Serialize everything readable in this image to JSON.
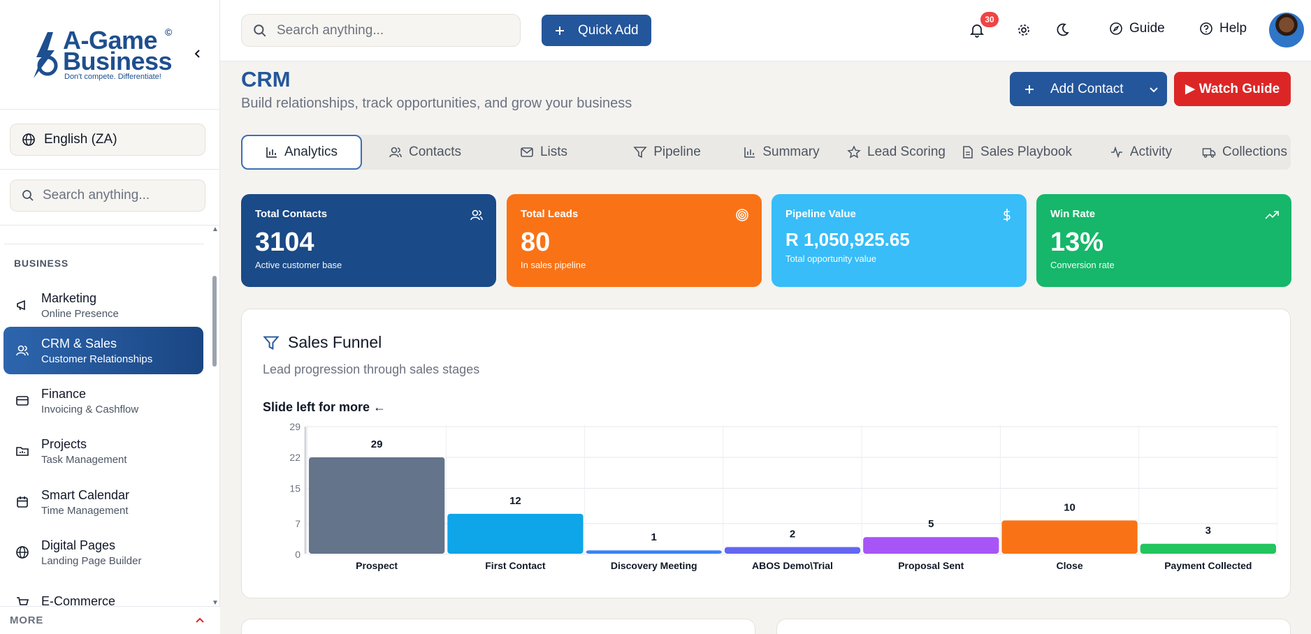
{
  "brand": {
    "line1": "A-Game",
    "line2": "Business",
    "copyright": "©",
    "tagline": "Don't compete. Differentiate!"
  },
  "sidebar": {
    "language": "English (ZA)",
    "search_placeholder": "Search anything...",
    "section_label": "BUSINESS",
    "items": [
      {
        "title": "Marketing",
        "subtitle": "Online Presence",
        "icon": "megaphone-icon"
      },
      {
        "title": "CRM & Sales",
        "subtitle": "Customer Relationships",
        "icon": "users-icon",
        "active": true
      },
      {
        "title": "Finance",
        "subtitle": "Invoicing & Cashflow",
        "icon": "credit-card-icon"
      },
      {
        "title": "Projects",
        "subtitle": "Task Management",
        "icon": "folder-chart-icon"
      },
      {
        "title": "Smart Calendar",
        "subtitle": "Time Management",
        "icon": "calendar-icon"
      },
      {
        "title": "Digital Pages",
        "subtitle": "Landing Page Builder",
        "icon": "globe-icon"
      },
      {
        "title": "E-Commerce",
        "subtitle": "",
        "icon": "cart-icon"
      }
    ],
    "more_label": "MORE"
  },
  "topbar": {
    "search_placeholder": "Search anything...",
    "quick_add": "Quick Add",
    "notification_count": "30",
    "guide": "Guide",
    "help": "Help"
  },
  "page": {
    "title": "CRM",
    "subtitle": "Build relationships, track opportunities, and grow your business",
    "add_contact": "Add Contact",
    "watch_guide": "▶ Watch Guide"
  },
  "tabs": [
    {
      "label": "Analytics",
      "icon": "bar-chart-icon"
    },
    {
      "label": "Contacts",
      "icon": "users-icon"
    },
    {
      "label": "Lists",
      "icon": "mail-icon"
    },
    {
      "label": "Pipeline",
      "icon": "filter-icon"
    },
    {
      "label": "Summary",
      "icon": "bar-chart-icon"
    },
    {
      "label": "Lead Scoring",
      "icon": "star-icon"
    },
    {
      "label": "Sales Playbook",
      "icon": "document-icon"
    },
    {
      "label": "Activity",
      "icon": "activity-icon"
    },
    {
      "label": "Collections",
      "icon": "truck-icon"
    }
  ],
  "stats": [
    {
      "label": "Total Contacts",
      "value": "3104",
      "sub": "Active customer base",
      "color": "#1a4a87",
      "icon": "users-icon"
    },
    {
      "label": "Total Leads",
      "value": "80",
      "sub": "In sales pipeline",
      "color": "#f97316",
      "icon": "target-icon"
    },
    {
      "label": "Pipeline Value",
      "value": "R 1,050,925.65",
      "sub": "Total opportunity value",
      "color": "#38bdf8",
      "icon": "dollar-icon"
    },
    {
      "label": "Win Rate",
      "value": "13%",
      "sub": "Conversion rate",
      "color": "#16b76a",
      "icon": "trending-up-icon"
    }
  ],
  "funnel": {
    "title": "Sales Funnel",
    "subtitle": "Lead progression through sales stages",
    "slide_hint": "Slide left for more ←"
  },
  "chart_data": {
    "type": "bar",
    "categories": [
      "Prospect",
      "First Contact",
      "Discovery Meeting",
      "ABOS Demo\\Trial",
      "Proposal Sent",
      "Close",
      "Payment Collected"
    ],
    "values": [
      29,
      12,
      1,
      2,
      5,
      10,
      3
    ],
    "colors": [
      "#64748b",
      "#0ea5e9",
      "#3b82f6",
      "#6366f1",
      "#a855f7",
      "#f97316",
      "#22c55e"
    ],
    "yticks": [
      0,
      7,
      15,
      22,
      29
    ],
    "ylim": [
      0,
      29
    ],
    "grid": true
  }
}
